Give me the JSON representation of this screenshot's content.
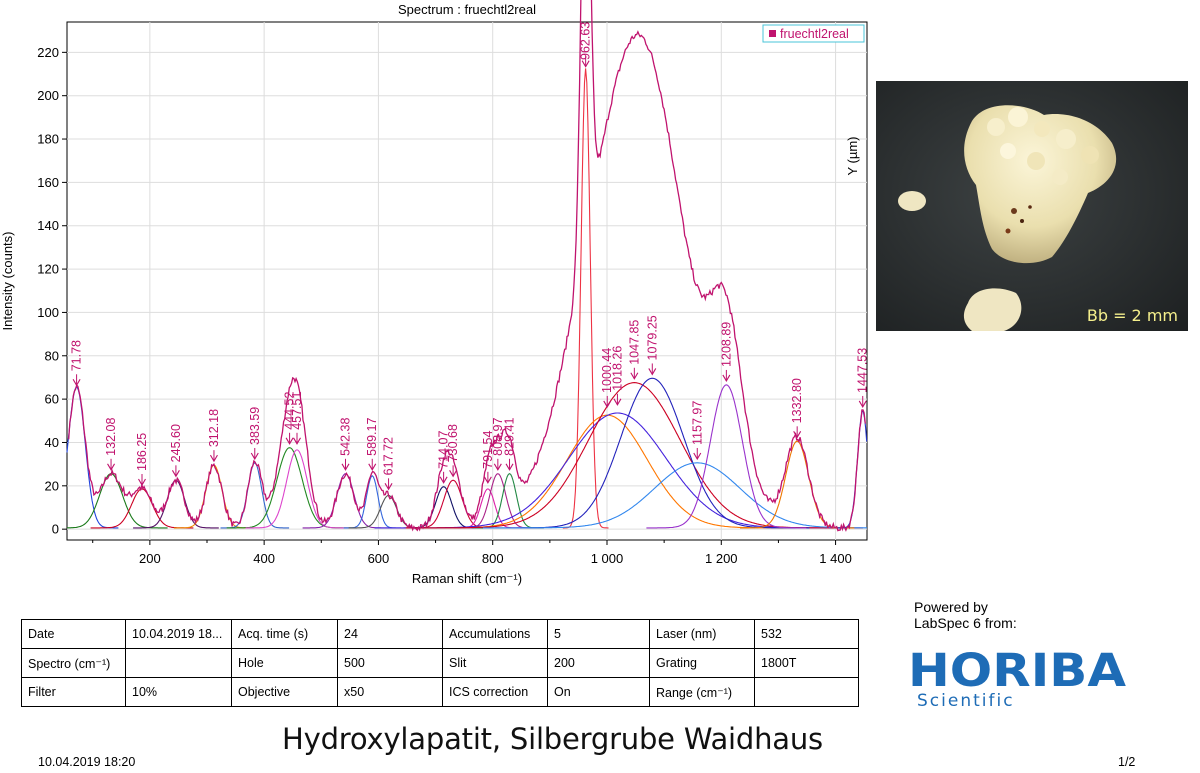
{
  "chart_data": {
    "type": "line",
    "title": "Spectrum : fruechtl2real",
    "xlabel": "Raman shift (cm⁻¹)",
    "ylabel": "Intensity (counts)",
    "side_label": "Y (µm)",
    "xlim": [
      55,
      1455
    ],
    "ylim": [
      -5,
      234
    ],
    "x_ticks": [
      200,
      400,
      600,
      800,
      1000,
      1200,
      1400
    ],
    "x_tick_labels": [
      "200",
      "400",
      "600",
      "800",
      "1 000",
      "1 200",
      "1 400"
    ],
    "y_ticks": [
      0,
      20,
      40,
      60,
      80,
      100,
      120,
      140,
      160,
      180,
      200,
      220
    ],
    "y_tick_labels": [
      "0",
      "20",
      "40",
      "60",
      "80",
      "100",
      "120",
      "140",
      "160",
      "180",
      "200",
      "220"
    ],
    "grid": true,
    "legend": "top-right",
    "legend_entries": [
      "fruechtl2real"
    ],
    "peak_labels": [
      {
        "label": "71.78",
        "x": 71.78,
        "y": 65
      },
      {
        "label": "132.08",
        "x": 132.08,
        "y": 26
      },
      {
        "label": "186.25",
        "x": 186.25,
        "y": 19
      },
      {
        "label": "245.60",
        "x": 245.6,
        "y": 23
      },
      {
        "label": "312.18",
        "x": 312.18,
        "y": 30
      },
      {
        "label": "383.59",
        "x": 383.59,
        "y": 31
      },
      {
        "label": "444.52",
        "x": 444.52,
        "y": 38
      },
      {
        "label": "457.51",
        "x": 457.51,
        "y": 38
      },
      {
        "label": "542.38",
        "x": 542.38,
        "y": 26
      },
      {
        "label": "589.17",
        "x": 589.17,
        "y": 26
      },
      {
        "label": "617.72",
        "x": 617.72,
        "y": 17
      },
      {
        "label": "714.07",
        "x": 714.07,
        "y": 20
      },
      {
        "label": "730.68",
        "x": 730.68,
        "y": 23
      },
      {
        "label": "791.54",
        "x": 791.54,
        "y": 20
      },
      {
        "label": "808.97",
        "x": 808.97,
        "y": 26
      },
      {
        "label": "829.41",
        "x": 829.41,
        "y": 26
      },
      {
        "label": "962.63",
        "x": 962.63,
        "y": 212
      },
      {
        "label": "1000.44",
        "x": 1000.44,
        "y": 55
      },
      {
        "label": "1018.26",
        "x": 1018.26,
        "y": 56
      },
      {
        "label": "1047.85",
        "x": 1047.85,
        "y": 68
      },
      {
        "label": "1079.25",
        "x": 1079.25,
        "y": 70
      },
      {
        "label": "1157.97",
        "x": 1157.97,
        "y": 31
      },
      {
        "label": "1208.89",
        "x": 1208.89,
        "y": 67
      },
      {
        "label": "1332.80",
        "x": 1332.8,
        "y": 41
      },
      {
        "label": "1447.53",
        "x": 1447.53,
        "y": 55
      }
    ],
    "fit_components": [
      {
        "center": 71.78,
        "height": 65,
        "width": 15,
        "color": "#2244dd"
      },
      {
        "center": 132.08,
        "height": 25,
        "width": 20,
        "color": "#1a7a1a"
      },
      {
        "center": 186.25,
        "height": 18,
        "width": 18,
        "color": "#cc0022"
      },
      {
        "center": 245.6,
        "height": 22,
        "width": 15,
        "color": "#551166"
      },
      {
        "center": 312.18,
        "height": 29,
        "width": 14,
        "color": "#ee8800"
      },
      {
        "center": 383.59,
        "height": 30,
        "width": 12,
        "color": "#3366cc"
      },
      {
        "center": 444.52,
        "height": 37,
        "width": 22,
        "color": "#228822"
      },
      {
        "center": 457.51,
        "height": 36,
        "width": 18,
        "color": "#dd44cc"
      },
      {
        "center": 542.38,
        "height": 25,
        "width": 15,
        "color": "#8822aa"
      },
      {
        "center": 589.17,
        "height": 24,
        "width": 10,
        "color": "#3366dd"
      },
      {
        "center": 617.72,
        "height": 15,
        "width": 14,
        "color": "#555555"
      },
      {
        "center": 714.07,
        "height": 19,
        "width": 14,
        "color": "#111166"
      },
      {
        "center": 730.68,
        "height": 22,
        "width": 16,
        "color": "#cc0033"
      },
      {
        "center": 791.54,
        "height": 18,
        "width": 12,
        "color": "#dd22aa"
      },
      {
        "center": 808.97,
        "height": 25,
        "width": 14,
        "color": "#aa2288"
      },
      {
        "center": 829.41,
        "height": 25,
        "width": 12,
        "color": "#228844"
      },
      {
        "center": 962.63,
        "height": 212,
        "width": 8,
        "color": "#ee3344"
      },
      {
        "center": 1000.44,
        "height": 52,
        "width": 70,
        "color": "#ff7700"
      },
      {
        "center": 1018.26,
        "height": 53,
        "width": 85,
        "color": "#4422dd"
      },
      {
        "center": 1047.85,
        "height": 67,
        "width": 80,
        "color": "#cc0022"
      },
      {
        "center": 1079.25,
        "height": 69,
        "width": 55,
        "color": "#2222bb"
      },
      {
        "center": 1157.97,
        "height": 30,
        "width": 75,
        "color": "#3388ee"
      },
      {
        "center": 1208.89,
        "height": 66,
        "width": 28,
        "color": "#9933cc"
      },
      {
        "center": 1332.8,
        "height": 40,
        "width": 20,
        "color": "#ee7700"
      },
      {
        "center": 1447.53,
        "height": 54,
        "width": 9,
        "color": "#2233cc"
      }
    ],
    "series": [
      {
        "name": "fruechtl2real",
        "color": "#c0136e"
      }
    ]
  },
  "photo": {
    "caption": "Bb = 2 mm"
  },
  "metadata_table": [
    [
      {
        "label": "Date",
        "value": "10.04.2019 18..."
      },
      {
        "label": "Acq. time (s)",
        "value": "24"
      },
      {
        "label": "Accumulations",
        "value": "5"
      },
      {
        "label": "Laser (nm)",
        "value": "532"
      }
    ],
    [
      {
        "label": "Spectro (cm⁻¹)",
        "value": ""
      },
      {
        "label": "Hole",
        "value": "500"
      },
      {
        "label": "Slit",
        "value": "200"
      },
      {
        "label": "Grating",
        "value": "1800T"
      }
    ],
    [
      {
        "label": "Filter",
        "value": "10%"
      },
      {
        "label": "Objective",
        "value": "x50"
      },
      {
        "label": "ICS correction",
        "value": "On"
      },
      {
        "label": "Range (cm⁻¹)",
        "value": ""
      }
    ]
  ],
  "branding": {
    "powered_line1": "Powered by",
    "powered_line2": "LabSpec 6 from:",
    "logo_text": "HORIBA",
    "logo_subtext": "Scientific",
    "logo_color": "#1e6cb6"
  },
  "report_title": "Hydroxylapatit, Silbergrube Waidhaus",
  "footer": {
    "date": "10.04.2019 18:20",
    "page": "1/2"
  }
}
